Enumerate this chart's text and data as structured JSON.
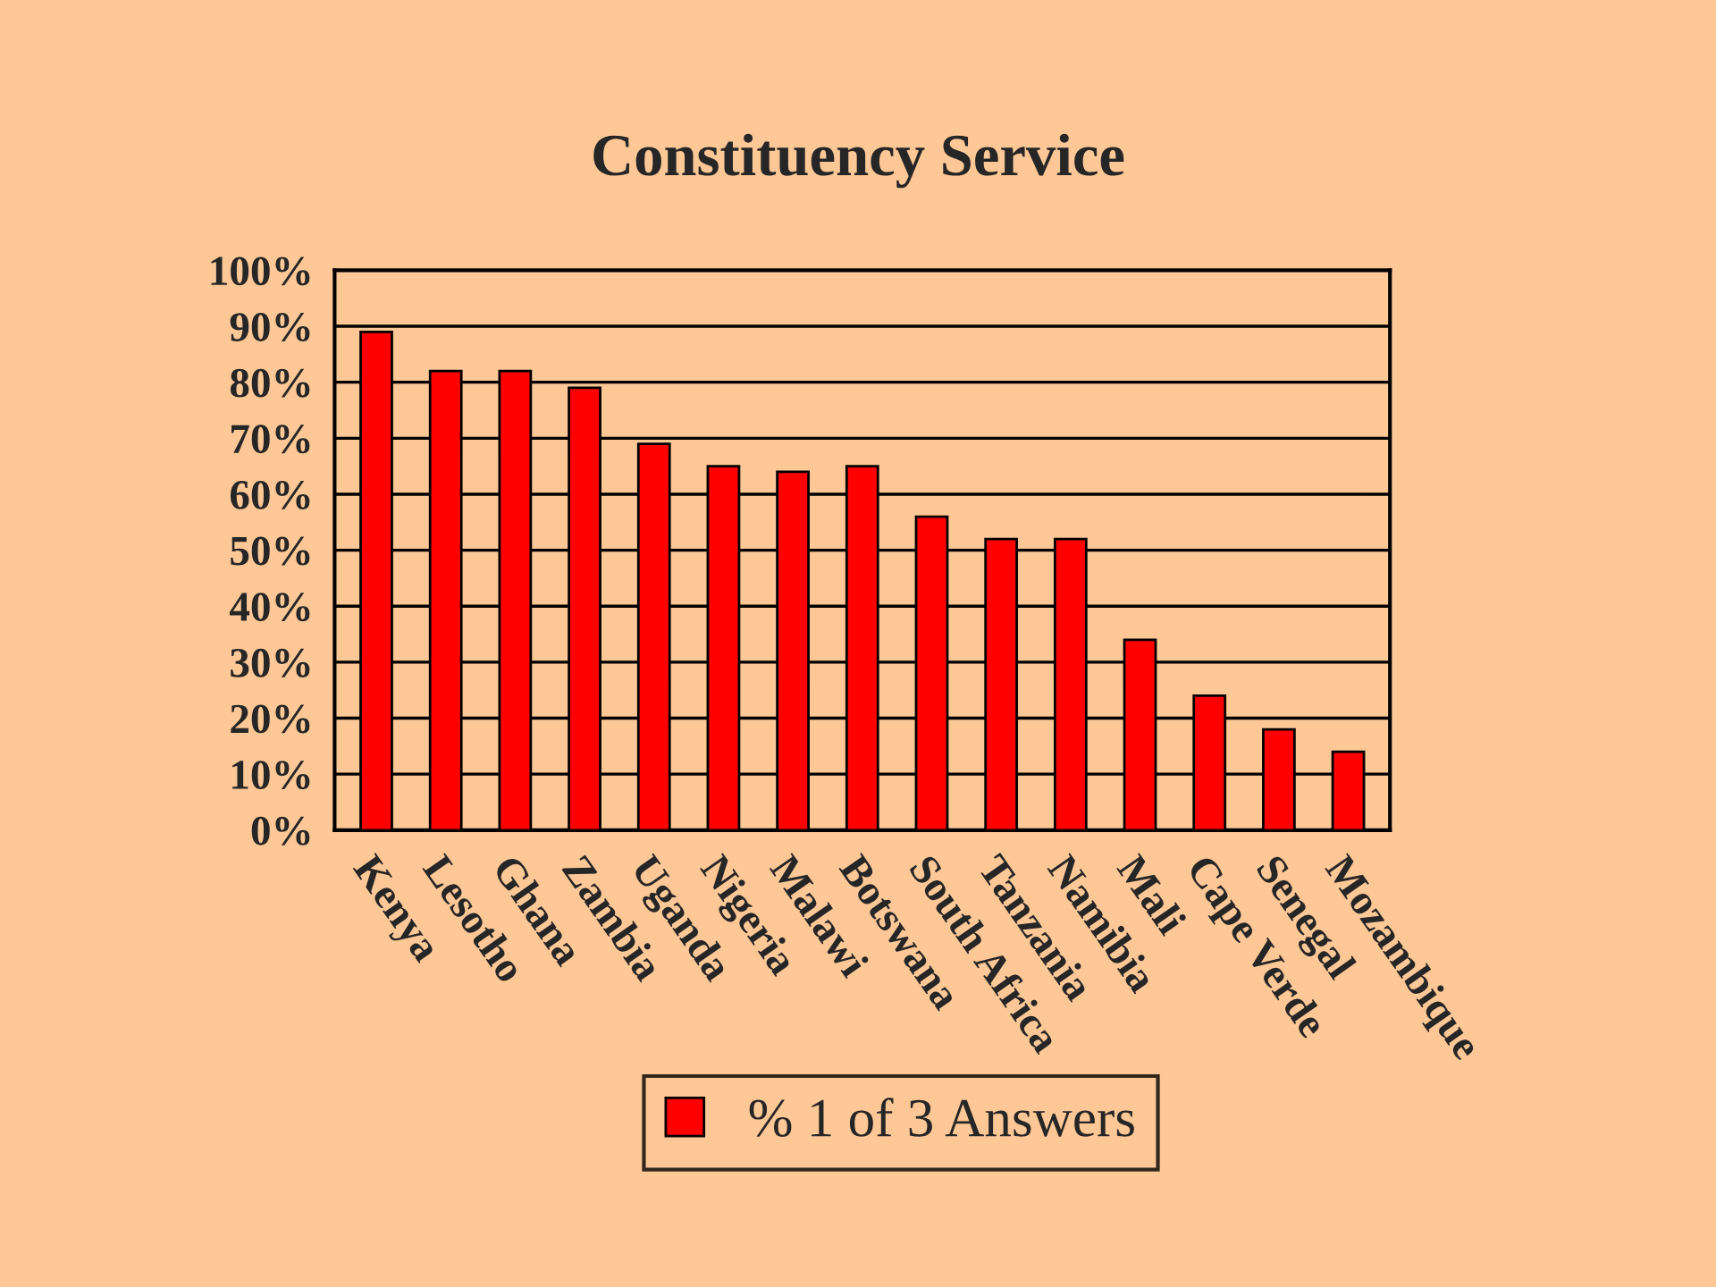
{
  "chart_data": {
    "type": "bar",
    "title": "Constituency Service",
    "categories": [
      "Kenya",
      "Lesotho",
      "Ghana",
      "Zambia",
      "Uganda",
      "Nigeria",
      "Malawi",
      "Botswana",
      "South Africa",
      "Tanzania",
      "Namibia",
      "Mali",
      "Cape Verde",
      "Senegal",
      "Mozambique"
    ],
    "series": [
      {
        "name": "% 1 of 3 Answers",
        "color": "#ff0000",
        "values": [
          89,
          82,
          82,
          79,
          69,
          65,
          64,
          65,
          56,
          52,
          52,
          34,
          24,
          18,
          14
        ]
      }
    ],
    "ylim": [
      0,
      100
    ],
    "yticks": [
      {
        "value": 0,
        "label": "0%"
      },
      {
        "value": 10,
        "label": "10%"
      },
      {
        "value": 20,
        "label": "20%"
      },
      {
        "value": 30,
        "label": "30%"
      },
      {
        "value": 40,
        "label": "40%"
      },
      {
        "value": 50,
        "label": "50%"
      },
      {
        "value": 60,
        "label": "60%"
      },
      {
        "value": 70,
        "label": "70%"
      },
      {
        "value": 80,
        "label": "80%"
      },
      {
        "value": 90,
        "label": "90%"
      },
      {
        "value": 100,
        "label": "100%"
      }
    ],
    "grid": "y",
    "legend": "bottom"
  }
}
